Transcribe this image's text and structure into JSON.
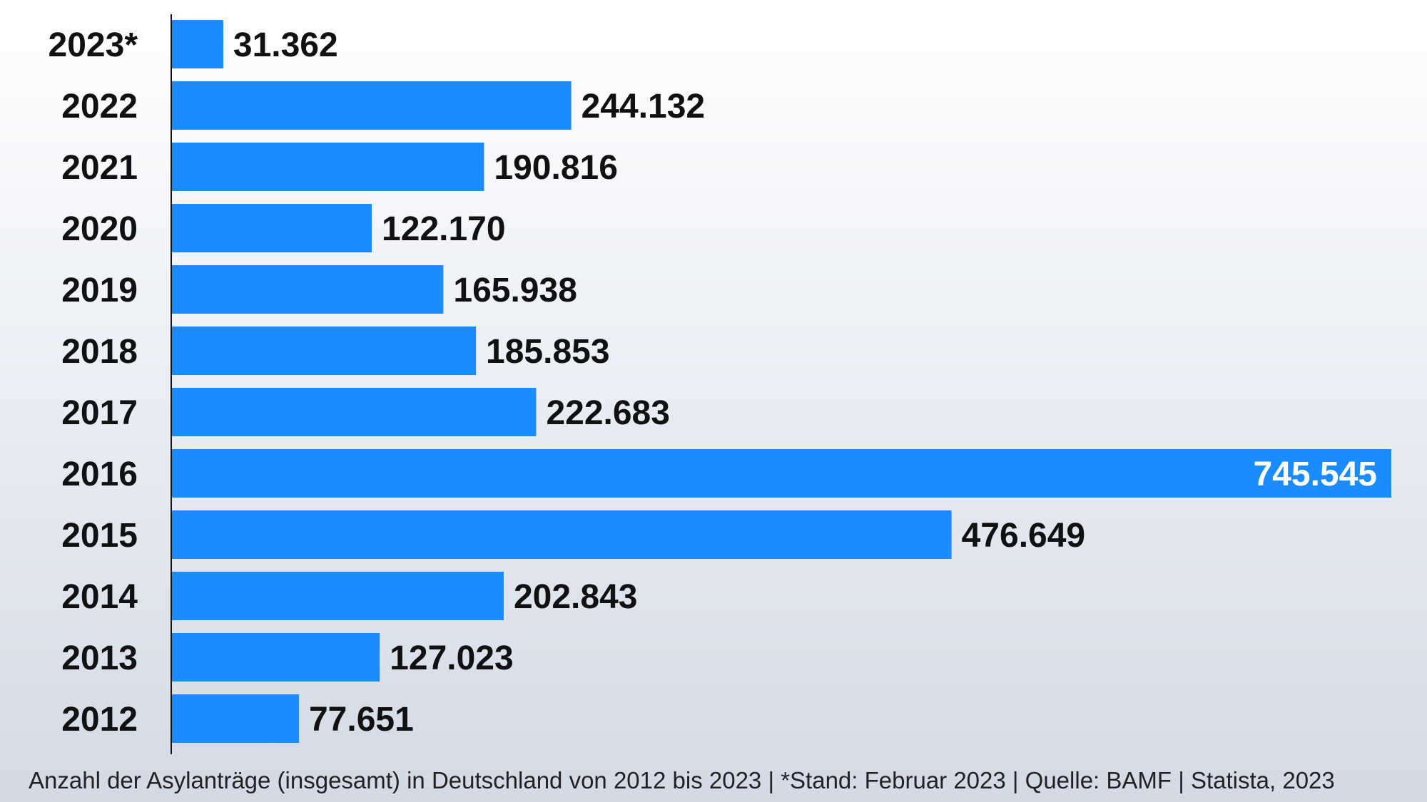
{
  "chart_data": {
    "type": "bar",
    "orientation": "horizontal",
    "categories": [
      "2023*",
      "2022",
      "2021",
      "2020",
      "2019",
      "2018",
      "2017",
      "2016",
      "2015",
      "2014",
      "2013",
      "2012"
    ],
    "values": [
      31362,
      244132,
      190816,
      122170,
      165938,
      185853,
      222683,
      745545,
      476649,
      202843,
      127023,
      77651
    ],
    "value_labels": [
      "31.362",
      "244.132",
      "190.816",
      "122.170",
      "165.938",
      "185.853",
      "222.683",
      "745.545",
      "476.649",
      "202.843",
      "127.023",
      "77.651"
    ],
    "xlim": [
      0,
      745545
    ],
    "grid": false,
    "bar_color": "#1a8cff",
    "caption": "Anzahl der Asylanträge (insgesamt) in Deutschland von 2012 bis 2023 | *Stand: Februar 2023 | Quelle: BAMF | Statista, 2023"
  }
}
